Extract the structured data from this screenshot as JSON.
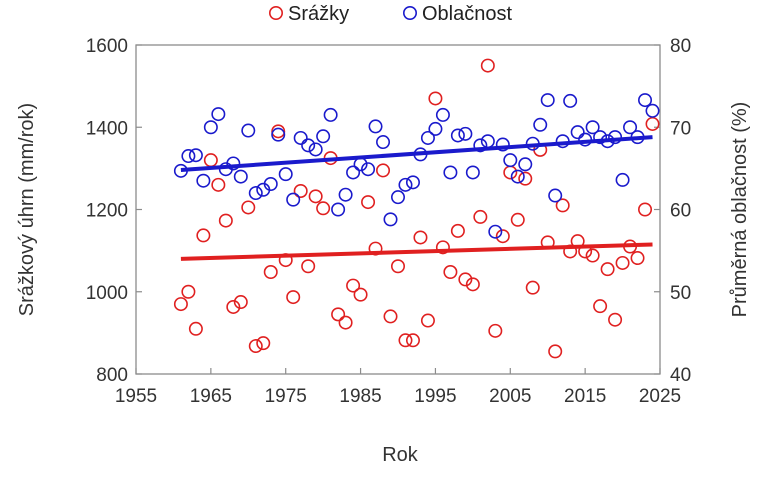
{
  "chart_data": {
    "type": "scatter",
    "xlabel": "Rok",
    "ylabel_left": "Srážkový úhrn (mm/rok)",
    "ylabel_right": "Průměrná oblačnost (%)",
    "xlim": [
      1955,
      2025
    ],
    "ylim_left": [
      800,
      1600
    ],
    "ylim_right": [
      40,
      80
    ],
    "xticks": [
      "1955",
      "1965",
      "1975",
      "1985",
      "1995",
      "2005",
      "2015",
      "2025"
    ],
    "yticks_left": [
      "800",
      "1000",
      "1200",
      "1400",
      "1600"
    ],
    "yticks_right": [
      "40",
      "50",
      "60",
      "70",
      "80"
    ],
    "legend_position": "top-center",
    "grid": false,
    "series": [
      {
        "name": "Srážky",
        "axis": "left",
        "color": "#e02020",
        "marker": "open-circle",
        "trend": {
          "x": [
            1961,
            2024
          ],
          "y": [
            1080,
            1115
          ],
          "color": "#e02020"
        },
        "points": [
          [
            1961,
            970
          ],
          [
            1962,
            1000
          ],
          [
            1963,
            910
          ],
          [
            1964,
            1137
          ],
          [
            1965,
            1320
          ],
          [
            1966,
            1260
          ],
          [
            1967,
            1173
          ],
          [
            1968,
            963
          ],
          [
            1969,
            975
          ],
          [
            1970,
            1205
          ],
          [
            1971,
            868
          ],
          [
            1972,
            875
          ],
          [
            1973,
            1048
          ],
          [
            1974,
            1390
          ],
          [
            1975,
            1077
          ],
          [
            1976,
            987
          ],
          [
            1977,
            1245
          ],
          [
            1978,
            1062
          ],
          [
            1979,
            1232
          ],
          [
            1980,
            1203
          ],
          [
            1981,
            1325
          ],
          [
            1982,
            945
          ],
          [
            1983,
            925
          ],
          [
            1984,
            1015
          ],
          [
            1985,
            993
          ],
          [
            1986,
            1218
          ],
          [
            1987,
            1105
          ],
          [
            1988,
            1295
          ],
          [
            1989,
            940
          ],
          [
            1990,
            1062
          ],
          [
            1991,
            882
          ],
          [
            1992,
            882
          ],
          [
            1993,
            1132
          ],
          [
            1994,
            930
          ],
          [
            1995,
            1470
          ],
          [
            1996,
            1108
          ],
          [
            1997,
            1048
          ],
          [
            1998,
            1148
          ],
          [
            1999,
            1030
          ],
          [
            2000,
            1018
          ],
          [
            2001,
            1182
          ],
          [
            2002,
            1550
          ],
          [
            2003,
            905
          ],
          [
            2004,
            1135
          ],
          [
            2005,
            1290
          ],
          [
            2006,
            1175
          ],
          [
            2007,
            1275
          ],
          [
            2008,
            1010
          ],
          [
            2009,
            1345
          ],
          [
            2010,
            1120
          ],
          [
            2011,
            855
          ],
          [
            2012,
            1210
          ],
          [
            2013,
            1098
          ],
          [
            2014,
            1123
          ],
          [
            2015,
            1098
          ],
          [
            2016,
            1088
          ],
          [
            2017,
            965
          ],
          [
            2018,
            1055
          ],
          [
            2019,
            932
          ],
          [
            2020,
            1070
          ],
          [
            2021,
            1110
          ],
          [
            2022,
            1082
          ],
          [
            2023,
            1200
          ],
          [
            2024,
            1408
          ]
        ]
      },
      {
        "name": "Oblačnost",
        "axis": "right",
        "color": "#1a1acc",
        "marker": "open-circle",
        "trend": {
          "x": [
            1961,
            2024
          ],
          "y": [
            64.8,
            68.8
          ],
          "color": "#1a1acc"
        },
        "points": [
          [
            1961,
            64.7
          ],
          [
            1962,
            66.5
          ],
          [
            1963,
            66.6
          ],
          [
            1964,
            63.5
          ],
          [
            1965,
            70.0
          ],
          [
            1966,
            71.6
          ],
          [
            1967,
            64.9
          ],
          [
            1968,
            65.6
          ],
          [
            1969,
            64.0
          ],
          [
            1970,
            69.6
          ],
          [
            1971,
            62.0
          ],
          [
            1972,
            62.4
          ],
          [
            1973,
            63.1
          ],
          [
            1974,
            69.1
          ],
          [
            1975,
            64.3
          ],
          [
            1976,
            61.2
          ],
          [
            1977,
            68.7
          ],
          [
            1978,
            67.8
          ],
          [
            1979,
            67.3
          ],
          [
            1980,
            68.9
          ],
          [
            1981,
            71.5
          ],
          [
            1982,
            60.0
          ],
          [
            1983,
            61.8
          ],
          [
            1984,
            64.5
          ],
          [
            1985,
            65.5
          ],
          [
            1986,
            64.9
          ],
          [
            1987,
            70.1
          ],
          [
            1988,
            68.2
          ],
          [
            1989,
            58.8
          ],
          [
            1990,
            61.5
          ],
          [
            1991,
            63.0
          ],
          [
            1992,
            63.3
          ],
          [
            1993,
            66.7
          ],
          [
            1994,
            68.7
          ],
          [
            1995,
            69.8
          ],
          [
            1996,
            71.5
          ],
          [
            1997,
            64.5
          ],
          [
            1998,
            69.0
          ],
          [
            1999,
            69.2
          ],
          [
            2000,
            64.5
          ],
          [
            2001,
            67.8
          ],
          [
            2002,
            68.3
          ],
          [
            2003,
            57.3
          ],
          [
            2004,
            67.9
          ],
          [
            2005,
            66.0
          ],
          [
            2006,
            64.0
          ],
          [
            2007,
            65.5
          ],
          [
            2008,
            68.0
          ],
          [
            2009,
            70.3
          ],
          [
            2010,
            73.3
          ],
          [
            2011,
            61.7
          ],
          [
            2012,
            68.3
          ],
          [
            2013,
            73.2
          ],
          [
            2014,
            69.4
          ],
          [
            2015,
            68.5
          ],
          [
            2016,
            70.0
          ],
          [
            2017,
            68.8
          ],
          [
            2018,
            68.3
          ],
          [
            2019,
            68.8
          ],
          [
            2020,
            63.6
          ],
          [
            2021,
            70.0
          ],
          [
            2022,
            68.8
          ],
          [
            2023,
            73.3
          ],
          [
            2024,
            72.0
          ]
        ]
      }
    ]
  }
}
